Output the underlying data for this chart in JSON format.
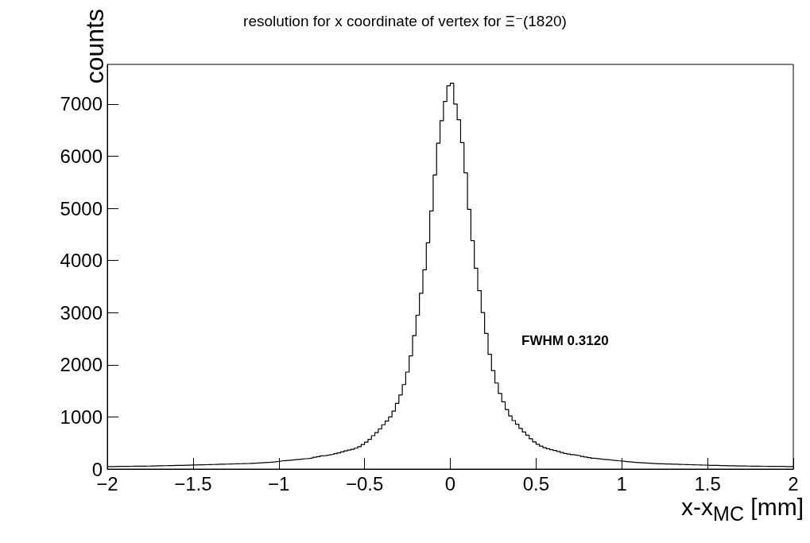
{
  "chart_data": {
    "type": "histogram",
    "title": "resolution for x coordinate of vertex for Ξ⁻(1820)",
    "xlabel": "x-x$_{MC}$ [mm]",
    "ylabel": "counts",
    "color": "#000000",
    "bins": [
      -2,
      -1.98,
      -1.96,
      -1.94,
      -1.92,
      -1.9,
      -1.88,
      -1.86,
      -1.84,
      -1.82,
      -1.8,
      -1.78,
      -1.76,
      -1.74,
      -1.72,
      -1.7,
      -1.68,
      -1.66,
      -1.64,
      -1.62,
      -1.6,
      -1.58,
      -1.56,
      -1.54,
      -1.52,
      -1.5,
      -1.48,
      -1.46,
      -1.44,
      -1.42,
      -1.4,
      -1.38,
      -1.36,
      -1.34,
      -1.32,
      -1.3,
      -1.28,
      -1.26,
      -1.24,
      -1.22,
      -1.2,
      -1.18,
      -1.16,
      -1.14,
      -1.12,
      -1.1,
      -1.08,
      -1.06,
      -1.04,
      -1.02,
      -1,
      -0.98,
      -0.96,
      -0.94,
      -0.92,
      -0.9,
      -0.88,
      -0.86,
      -0.84,
      -0.82,
      -0.8,
      -0.78,
      -0.76,
      -0.74,
      -0.72,
      -0.7,
      -0.68,
      -0.66,
      -0.64,
      -0.62,
      -0.6,
      -0.58,
      -0.56,
      -0.54,
      -0.52,
      -0.5,
      -0.48,
      -0.46,
      -0.44,
      -0.42,
      -0.4,
      -0.38,
      -0.36,
      -0.34,
      -0.32,
      -0.3,
      -0.28,
      -0.26,
      -0.24,
      -0.22,
      -0.2,
      -0.18,
      -0.16,
      -0.14,
      -0.12,
      -0.1,
      -0.08,
      -0.06,
      -0.04,
      -0.02,
      0,
      0.02,
      0.04,
      0.06,
      0.08,
      0.1,
      0.12,
      0.14,
      0.16,
      0.18,
      0.2,
      0.22,
      0.24,
      0.26,
      0.28,
      0.3,
      0.32,
      0.34,
      0.36,
      0.38,
      0.4,
      0.42,
      0.44,
      0.46,
      0.48,
      0.5,
      0.52,
      0.54,
      0.56,
      0.58,
      0.6,
      0.62,
      0.64,
      0.66,
      0.68,
      0.7,
      0.72,
      0.74,
      0.76,
      0.78,
      0.8,
      0.82,
      0.84,
      0.86,
      0.88,
      0.9,
      0.92,
      0.94,
      0.96,
      0.98,
      1,
      1.02,
      1.04,
      1.06,
      1.08,
      1.1,
      1.12,
      1.14,
      1.16,
      1.18,
      1.2,
      1.22,
      1.24,
      1.26,
      1.28,
      1.3,
      1.32,
      1.34,
      1.36,
      1.38,
      1.4,
      1.42,
      1.44,
      1.46,
      1.48,
      1.5,
      1.52,
      1.54,
      1.56,
      1.58,
      1.6,
      1.62,
      1.64,
      1.66,
      1.68,
      1.7,
      1.72,
      1.74,
      1.76,
      1.78,
      1.8,
      1.82,
      1.84,
      1.86,
      1.88,
      1.9,
      1.92,
      1.94,
      1.96,
      1.98,
      2
    ],
    "values": [
      48,
      49,
      50,
      51,
      51,
      52,
      53,
      54,
      54,
      55,
      56,
      57,
      59,
      60,
      62,
      63,
      65,
      66,
      68,
      69,
      71,
      72,
      74,
      75,
      77,
      79,
      81,
      82,
      84,
      86,
      88,
      90,
      92,
      94,
      95,
      97,
      99,
      101,
      103,
      105,
      107,
      110,
      113,
      116,
      119,
      123,
      127,
      132,
      138,
      146,
      156,
      161,
      167,
      173,
      180,
      186,
      192,
      198,
      205,
      215,
      226,
      238,
      252,
      262,
      272,
      282,
      295,
      310,
      330,
      350,
      365,
      380,
      400,
      430,
      470,
      515,
      570,
      640,
      700,
      770,
      850,
      920,
      1000,
      1110,
      1260,
      1420,
      1620,
      1860,
      2170,
      2560,
      2950,
      3370,
      3820,
      4340,
      4950,
      5640,
      6250,
      6680,
      7050,
      7350,
      7400,
      7000,
      6700,
      6260,
      5680,
      4980,
      4380,
      3850,
      3420,
      3000,
      2600,
      2200,
      1890,
      1650,
      1450,
      1290,
      1140,
      1020,
      930,
      860,
      780,
      710,
      650,
      580,
      520,
      475,
      440,
      410,
      390,
      372,
      355,
      338,
      318,
      300,
      287,
      275,
      265,
      255,
      242,
      230,
      218,
      207,
      199,
      192,
      186,
      180,
      173,
      166,
      160,
      155,
      147,
      140,
      134,
      128,
      123,
      119,
      115,
      111,
      108,
      105,
      102,
      100,
      98,
      96,
      94,
      92,
      90,
      88,
      86,
      84,
      82,
      80,
      78,
      76,
      74,
      72,
      70,
      69,
      67,
      66,
      64,
      63,
      62,
      60,
      59,
      58,
      57,
      56,
      55,
      54,
      53,
      53,
      52,
      51,
      51,
      50,
      50,
      49,
      49,
      48
    ],
    "xlim": [
      -2,
      2
    ],
    "xticks": [
      -2,
      -1.5,
      -1,
      -0.5,
      0,
      0.5,
      1,
      1.5,
      2
    ],
    "ylim": [
      0,
      7760
    ],
    "yticks": [
      0,
      1000,
      2000,
      3000,
      4000,
      5000,
      6000,
      7000
    ],
    "annotations": [
      "FWHM 0.3120"
    ]
  }
}
